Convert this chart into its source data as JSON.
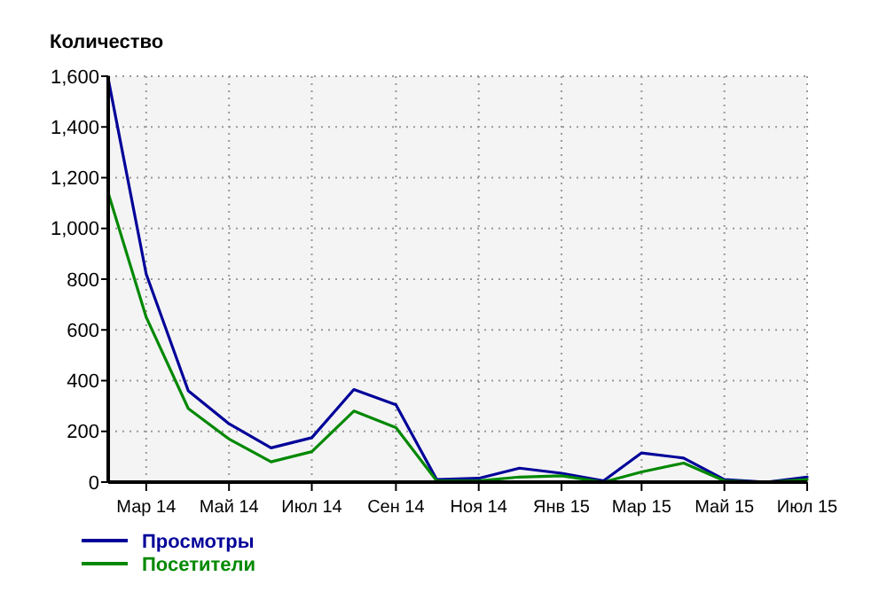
{
  "chart_data": {
    "type": "line",
    "ylabel": "Количество",
    "x": [
      "2014-02",
      "2014-03",
      "2014-04",
      "2014-05",
      "2014-06",
      "2014-07",
      "2014-08",
      "2014-09",
      "2014-10",
      "2014-11",
      "2014-12",
      "2015-01",
      "2015-02",
      "2015-03",
      "2015-04",
      "2015-05",
      "2015-06",
      "2015-07"
    ],
    "series": [
      {
        "name": "Просмотры",
        "color": "#000099",
        "values": [
          1590,
          820,
          360,
          230,
          135,
          175,
          365,
          305,
          10,
          15,
          55,
          35,
          5,
          115,
          95,
          10,
          0,
          20
        ]
      },
      {
        "name": "Посетители",
        "color": "#008800",
        "values": [
          1140,
          650,
          290,
          170,
          80,
          120,
          280,
          215,
          5,
          5,
          20,
          25,
          0,
          40,
          75,
          5,
          0,
          10
        ]
      }
    ],
    "xlim": [
      "2014-02",
      "2015-07"
    ],
    "xticks": [
      {
        "value": "2014-03",
        "label": "Мар 14"
      },
      {
        "value": "2014-05",
        "label": "Май 14"
      },
      {
        "value": "2014-07",
        "label": "Июл 14"
      },
      {
        "value": "2014-09",
        "label": "Сен 14"
      },
      {
        "value": "2014-11",
        "label": "Ноя 14"
      },
      {
        "value": "2015-01",
        "label": "Янв 15"
      },
      {
        "value": "2015-03",
        "label": "Мар 15"
      },
      {
        "value": "2015-05",
        "label": "Май 15"
      },
      {
        "value": "2015-07",
        "label": "Июл 15"
      }
    ],
    "ylim": [
      0,
      1600
    ],
    "yticks": [
      {
        "value": 0,
        "label": "0"
      },
      {
        "value": 200,
        "label": "200"
      },
      {
        "value": 400,
        "label": "400"
      },
      {
        "value": 600,
        "label": "600"
      },
      {
        "value": 800,
        "label": "800"
      },
      {
        "value": 1000,
        "label": "1,000"
      },
      {
        "value": 1200,
        "label": "1,200"
      },
      {
        "value": 1400,
        "label": "1,400"
      },
      {
        "value": 1600,
        "label": "1,600"
      }
    ],
    "grid": true,
    "legend": "bottom",
    "marker": "none",
    "line_style": "solid"
  }
}
